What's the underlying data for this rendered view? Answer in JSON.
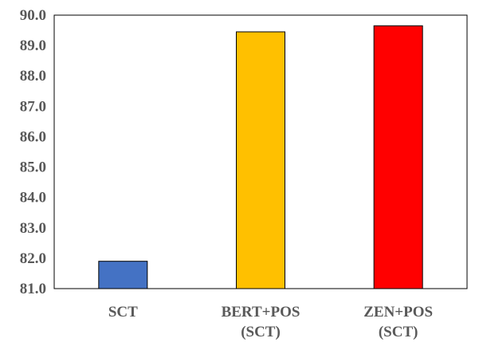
{
  "chart_data": {
    "type": "bar",
    "title": "",
    "xlabel": "",
    "ylabel": "",
    "categories": [
      [
        "SCT"
      ],
      [
        "BERT+POS",
        "(SCT)"
      ],
      [
        "ZEN+POS",
        "(SCT)"
      ]
    ],
    "values": [
      81.9,
      89.45,
      89.65
    ],
    "bar_colors": [
      "#4472C4",
      "#FFC000",
      "#FF0000"
    ],
    "bar_edge_color": "#000000",
    "ylim": [
      81.0,
      90.0
    ],
    "yticks": [
      "81.0",
      "82.0",
      "83.0",
      "84.0",
      "85.0",
      "86.0",
      "87.0",
      "88.0",
      "89.0",
      "90.0"
    ],
    "grid": false,
    "legend": "none"
  }
}
